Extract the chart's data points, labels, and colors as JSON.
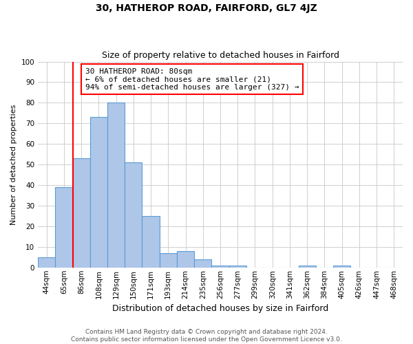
{
  "title": "30, HATHEROP ROAD, FAIRFORD, GL7 4JZ",
  "subtitle": "Size of property relative to detached houses in Fairford",
  "xlabel": "Distribution of detached houses by size in Fairford",
  "ylabel": "Number of detached properties",
  "footer_lines": [
    "Contains HM Land Registry data © Crown copyright and database right 2024.",
    "Contains public sector information licensed under the Open Government Licence v3.0."
  ],
  "bin_labels": [
    "44sqm",
    "65sqm",
    "86sqm",
    "108sqm",
    "129sqm",
    "150sqm",
    "171sqm",
    "193sqm",
    "214sqm",
    "235sqm",
    "256sqm",
    "277sqm",
    "299sqm",
    "320sqm",
    "341sqm",
    "362sqm",
    "384sqm",
    "405sqm",
    "426sqm",
    "447sqm",
    "468sqm"
  ],
  "bar_values": [
    5,
    39,
    53,
    73,
    80,
    51,
    25,
    7,
    8,
    4,
    1,
    1,
    0,
    0,
    0,
    1,
    0,
    1,
    0,
    0,
    0
  ],
  "bar_color": "#aec6e8",
  "bar_edgecolor": "#5b9bd5",
  "vline_x": 2.0,
  "vline_color": "red",
  "annotation_text": "30 HATHEROP ROAD: 80sqm\n← 6% of detached houses are smaller (21)\n94% of semi-detached houses are larger (327) →",
  "annotation_box_edgecolor": "red",
  "annotation_box_facecolor": "white",
  "ylim": [
    0,
    100
  ],
  "background_color": "#ffffff",
  "grid_color": "#c8c8c8",
  "title_fontsize": 10,
  "subtitle_fontsize": 9,
  "xlabel_fontsize": 9,
  "ylabel_fontsize": 8,
  "tick_fontsize": 7.5,
  "annotation_fontsize": 8,
  "footer_fontsize": 6.5
}
